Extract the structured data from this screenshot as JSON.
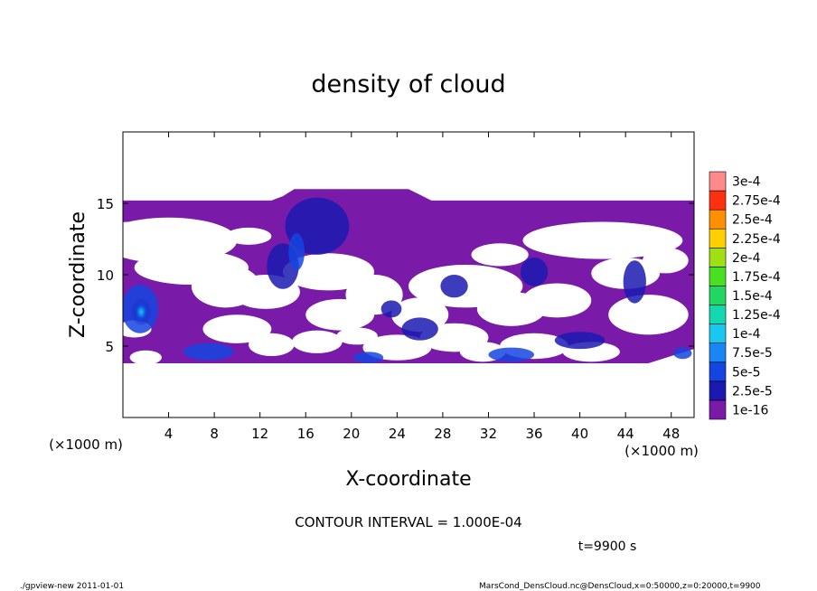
{
  "chart_data": {
    "type": "heatmap",
    "title": "density of cloud",
    "xlabel": "X-coordinate",
    "ylabel": "Z-coordinate",
    "x_unit_label": "(×1000 m)",
    "x_unit_label_right": "(×1000 m)",
    "xlim": [
      0,
      50
    ],
    "ylim": [
      0,
      20
    ],
    "x_ticks": [
      4,
      8,
      12,
      16,
      20,
      24,
      28,
      32,
      36,
      40,
      44,
      48
    ],
    "y_ticks": [
      5,
      10,
      15
    ],
    "grid": false,
    "colorbar": {
      "levels": [
        "1e-16",
        "2.5e-5",
        "5e-5",
        "7.5e-5",
        "1e-4",
        "1.25e-4",
        "1.5e-4",
        "1.75e-4",
        "2e-4",
        "2.25e-4",
        "2.5e-4",
        "2.75e-4",
        "3e-4"
      ],
      "colors": [
        "#7a1aa8",
        "#1a1ab0",
        "#1545e0",
        "#1a85f5",
        "#18c8f0",
        "#14d8b0",
        "#20d860",
        "#48e020",
        "#a0e010",
        "#ffd000",
        "#ff9000",
        "#ff3010",
        "#ff8a8a"
      ]
    },
    "cloud_top_z": 15.2,
    "cloud_base_z": 3.8,
    "series": [
      {
        "name": "1e-16",
        "coverage": "main cloud band from z≈3.8 to z≈15.2 with clear gaps between z≈6 and z≈13"
      },
      {
        "name": "5e-5",
        "cells_x": [
          1.5,
          7.5,
          14,
          17,
          22,
          26,
          34,
          40,
          49
        ]
      }
    ]
  },
  "annotations": {
    "contour_interval": "CONTOUR INTERVAL = 1.000E-04",
    "time": "t=9900 s",
    "footer_left": "./gpview-new  2011-01-01",
    "footer_right": "MarsCond_DensCloud.nc@DensCloud,x=0:50000,z=0:20000,t=9900"
  }
}
